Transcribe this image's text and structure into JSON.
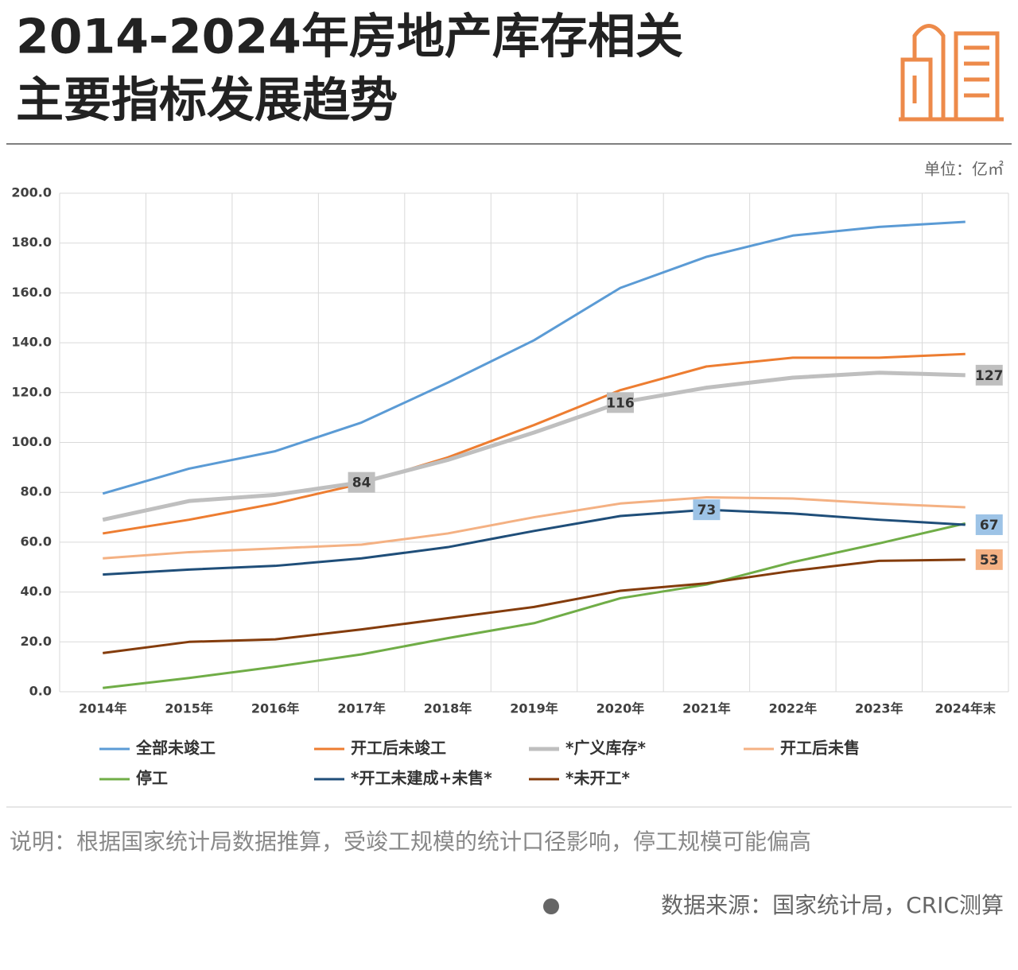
{
  "chart_data": {
    "type": "line",
    "title": [
      "2014-2024年房地产库存相关",
      "主要指标发展趋势"
    ],
    "unit": "单位：亿㎡",
    "categories": [
      "2014年",
      "2015年",
      "2016年",
      "2017年",
      "2018年",
      "2019年",
      "2020年",
      "2021年",
      "2022年",
      "2023年",
      "2024年末"
    ],
    "ylim": [
      0,
      200
    ],
    "yticks": [
      {
        "value": 0,
        "label": "0.0"
      },
      {
        "value": 20,
        "label": "20.0"
      },
      {
        "value": 40,
        "label": "40.0"
      },
      {
        "value": 60,
        "label": "60.0"
      },
      {
        "value": 80,
        "label": "80.0"
      },
      {
        "value": 100,
        "label": "100.0"
      },
      {
        "value": 120,
        "label": "120.0"
      },
      {
        "value": 140,
        "label": "140.0"
      },
      {
        "value": 160,
        "label": "160.0"
      },
      {
        "value": 180,
        "label": "180.0"
      },
      {
        "value": 200,
        "label": "200.0"
      }
    ],
    "grid": true,
    "series": [
      {
        "name": "全部未竣工",
        "color": "#5b9bd5",
        "values": [
          79.5,
          89.5,
          96.5,
          108,
          124,
          141,
          162,
          174.5,
          183,
          186.5,
          188.5
        ]
      },
      {
        "name": "开工后未竣工",
        "color": "#ed7d31",
        "values": [
          63.5,
          69,
          75.5,
          83.5,
          94,
          107,
          121,
          130.5,
          134,
          134,
          135.5
        ]
      },
      {
        "name": "*广义库存*",
        "color": "#bfbfbf",
        "values": [
          69,
          76.5,
          79,
          84,
          93,
          104,
          116,
          122,
          126,
          128,
          127
        ],
        "labeled": [
          3,
          6,
          10
        ],
        "label_color": "#bfbfbf"
      },
      {
        "name": "开工后未售",
        "color": "#f4b183",
        "values": [
          53.5,
          56,
          57.5,
          59,
          63.5,
          70,
          75.5,
          78,
          77.5,
          75.5,
          74
        ]
      },
      {
        "name": "停工",
        "color": "#70ad47",
        "values": [
          1.5,
          5.5,
          10,
          15,
          21.5,
          27.5,
          37.5,
          43,
          52,
          59.5,
          67.5
        ]
      },
      {
        "name": "*开工未建成+未售*",
        "color": "#1f4e79",
        "values": [
          47,
          49,
          50.5,
          53.5,
          58,
          64.5,
          70.5,
          73,
          71.5,
          69,
          67
        ],
        "labeled": [
          7,
          10
        ],
        "label_color": "#9dc3e6"
      },
      {
        "name": "*未开工*",
        "color": "#843c0c",
        "values": [
          15.5,
          20,
          21,
          25,
          29.5,
          34,
          40.5,
          43.5,
          48.5,
          52.5,
          53
        ],
        "labeled": [
          10
        ],
        "label_color": "#f4b183"
      }
    ],
    "note": "说明：根据国家统计局数据推算，受竣工规模的统计口径影响，停工规模可能偏高",
    "source": "数据来源：国家统计局，CRIC测算"
  }
}
